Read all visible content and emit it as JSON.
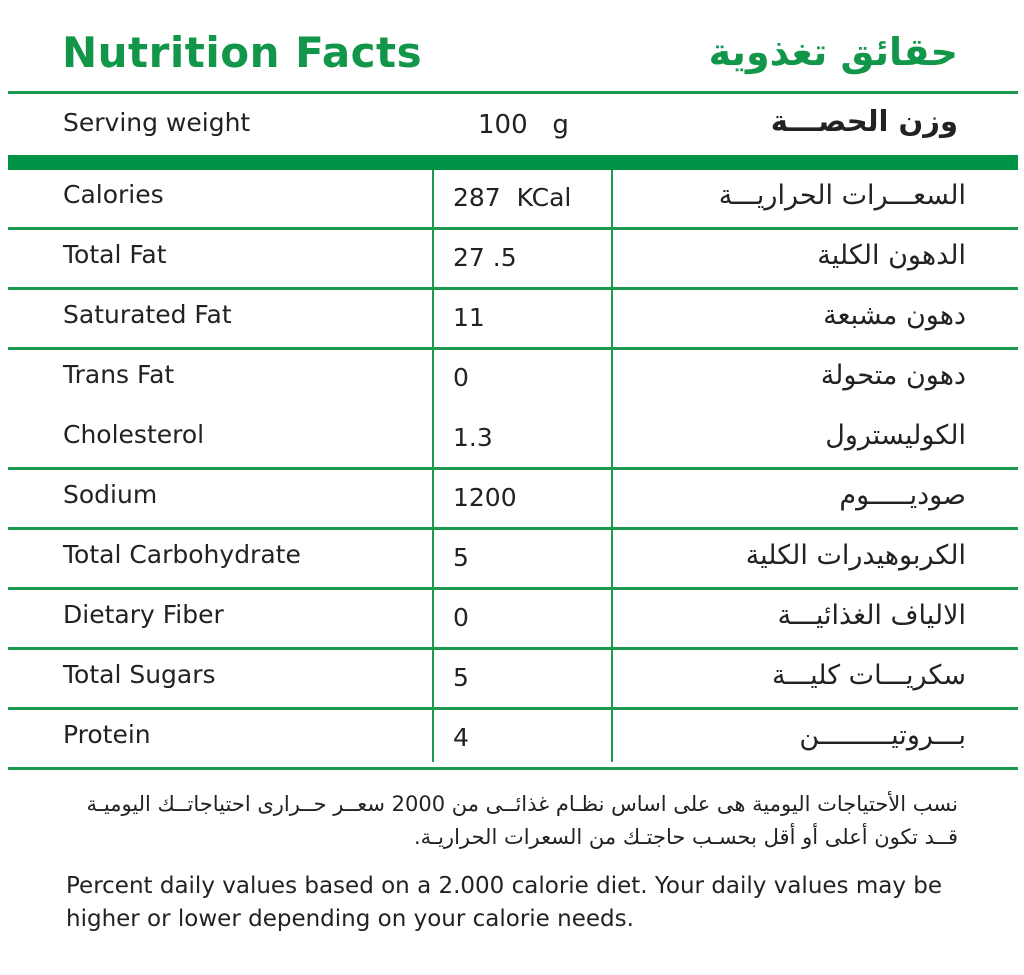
{
  "header": {
    "title_en": "Nutrition Facts",
    "title_ar": "حقائق تغذوية"
  },
  "serving": {
    "label_en": "Serving weight",
    "value": "100   g",
    "label_ar": "وزن الحصـــة"
  },
  "colors": {
    "accent": "#12964a",
    "bar": "#009245",
    "text": "#222222"
  },
  "rows": [
    {
      "en": "Calories",
      "value": "287  KCal",
      "ar": "السعـــرات الحراريـــة"
    },
    {
      "en": "Total Fat",
      "value": "27 .5",
      "ar": "الدهون الكلية"
    },
    {
      "en": "Saturated Fat",
      "value": "11",
      "ar": "دهون مشبعة"
    },
    {
      "en": "Trans Fat",
      "value": "0",
      "ar": "دهون متحولة"
    },
    {
      "en": "Cholesterol",
      "value": "1.3",
      "ar": "الكوليسترول"
    },
    {
      "en": "Sodium",
      "value": "1200",
      "ar": "صوديـــــوم"
    },
    {
      "en": "Total Carbohydrate",
      "value": "5",
      "ar": "الكربوهيدرات الكلية"
    },
    {
      "en": "Dietary Fiber",
      "value": "0",
      "ar": "الالياف الغذائيـــة"
    },
    {
      "en": "Total Sugars",
      "value": "5",
      "ar": "سكريـــات كليـــة"
    },
    {
      "en": "Protein",
      "value": "4",
      "ar": "بـــروتيـــــــــن"
    }
  ],
  "footnote": {
    "ar": "نسب الأحتياجات اليومية هى على اساس نظـام غذائــى من 2000 سعــر حــرارى احتياجاتــك اليوميـة قــد تكون أعلى أو أقل بحسـب حاجتـك من السعرات الحراريـة.",
    "en": "Percent daily values based on a 2.000 calorie diet. Your daily values may be higher or lower depending on your calorie needs."
  }
}
